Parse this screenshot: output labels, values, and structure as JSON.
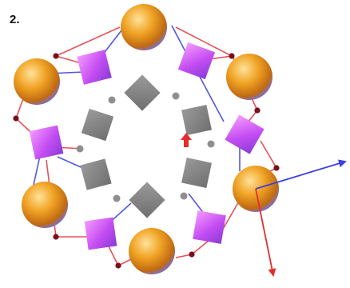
{
  "panel_label": "2.",
  "colors": {
    "sphere_light": "#ffe29a",
    "sphere_mid": "#f0a324",
    "sphere_dark": "#c06a12",
    "sphere_blue_tint": "#7c6fc9",
    "purple_light": "#f59bff",
    "purple_mid": "#c44df2",
    "purple_dark": "#8a3bd6",
    "gray_block": "#8c8c8c",
    "gray_block_dark": "#6f6f6f",
    "gray_dot": "#8f8f8f",
    "red_link": "#e8505a",
    "blue_link": "#4f57e6",
    "joint": "#7a0f1a",
    "arrow_red": "#e52d2d",
    "arrow_blue": "#3b3fe0"
  }
}
